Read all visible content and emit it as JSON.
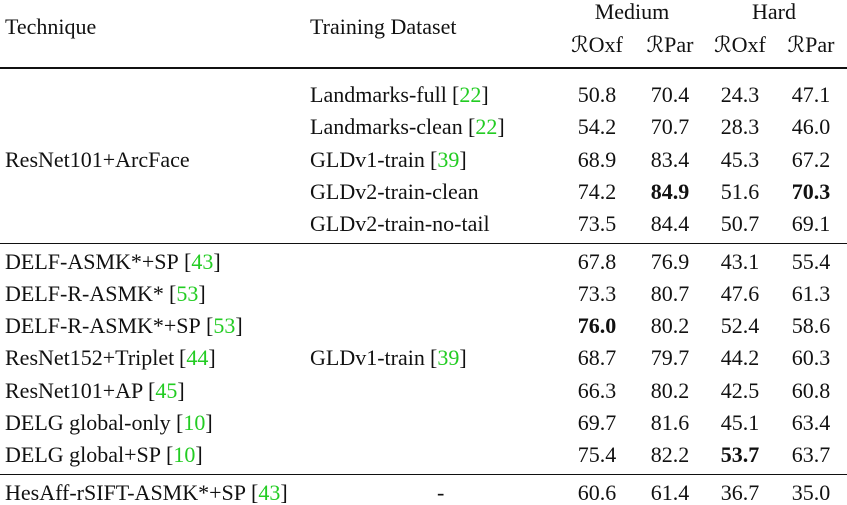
{
  "header": {
    "technique": "Technique",
    "dataset": "Training Dataset",
    "groups": [
      "Medium",
      "Hard"
    ],
    "columns": [
      "ℛOxf",
      "ℛPar",
      "ℛOxf",
      "ℛPar"
    ]
  },
  "sections": [
    {
      "technique": "ResNet101+ArcFace",
      "rows": [
        {
          "dataset": "Landmarks-full",
          "cite": "[22]",
          "values": [
            "50.8",
            "70.4",
            "24.3",
            "47.1"
          ]
        },
        {
          "dataset": "Landmarks-clean",
          "cite": "[22]",
          "values": [
            "54.2",
            "70.7",
            "28.3",
            "46.0"
          ]
        },
        {
          "dataset": "GLDv1-train",
          "cite": "[39]",
          "values": [
            "68.9",
            "83.4",
            "45.3",
            "67.2"
          ]
        },
        {
          "dataset": "GLDv2-train-clean",
          "values": [
            "74.2",
            "84.9",
            "51.6",
            "70.3"
          ],
          "bold": [
            1,
            3
          ]
        },
        {
          "dataset": "GLDv2-train-no-tail",
          "values": [
            "73.5",
            "84.4",
            "50.7",
            "69.1"
          ]
        }
      ]
    },
    {
      "dataset": "GLDv1-train",
      "dataset_cite": "[39]",
      "rows": [
        {
          "technique": "DELF-ASMK*+SP",
          "cite": "[43]",
          "values": [
            "67.8",
            "76.9",
            "43.1",
            "55.4"
          ]
        },
        {
          "technique": "DELF-R-ASMK*",
          "cite": "[53]",
          "values": [
            "73.3",
            "80.7",
            "47.6",
            "61.3"
          ]
        },
        {
          "technique": "DELF-R-ASMK*+SP",
          "cite": "[53]",
          "values": [
            "76.0",
            "80.2",
            "52.4",
            "58.6"
          ],
          "bold": [
            0
          ]
        },
        {
          "technique": "ResNet152+Triplet",
          "cite": "[44]",
          "values": [
            "68.7",
            "79.7",
            "44.2",
            "60.3"
          ]
        },
        {
          "technique": "ResNet101+AP",
          "cite": "[45]",
          "values": [
            "66.3",
            "80.2",
            "42.5",
            "60.8"
          ]
        },
        {
          "technique": "DELG global-only",
          "cite": "[10]",
          "values": [
            "69.7",
            "81.6",
            "45.1",
            "63.4"
          ]
        },
        {
          "technique": "DELG global+SP",
          "cite": "[10]",
          "values": [
            "75.4",
            "82.2",
            "53.7",
            "63.7"
          ],
          "bold": [
            2
          ]
        }
      ]
    },
    {
      "rows": [
        {
          "technique": "HesAff-rSIFT-ASMK*+SP",
          "cite": "[43]",
          "dataset": "-",
          "values": [
            "60.6",
            "61.4",
            "36.7",
            "35.0"
          ]
        }
      ]
    }
  ]
}
